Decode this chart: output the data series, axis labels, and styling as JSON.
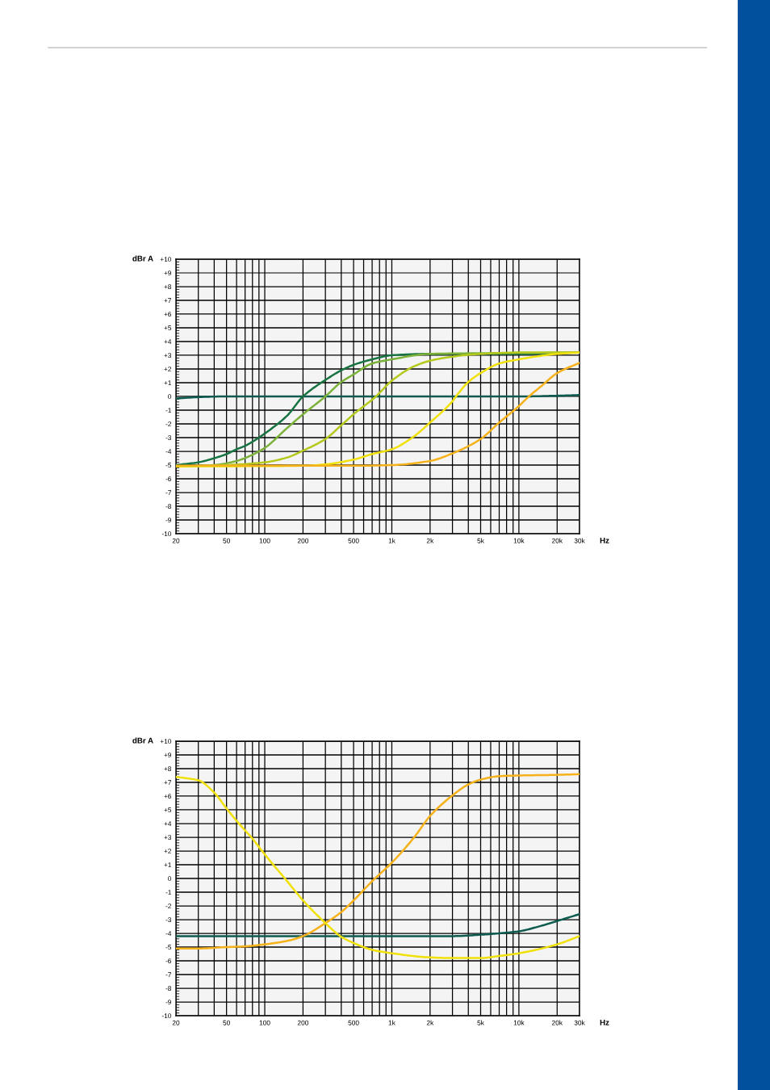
{
  "chart_data": [
    {
      "type": "line",
      "xlabel": "Hz",
      "ylabel": "dBr A",
      "log": "x",
      "grid": true,
      "xlim": [
        20,
        30000
      ],
      "ylim": [
        -10,
        10
      ],
      "xticks": [
        20,
        {
          "value": 30,
          "label": null
        },
        {
          "value": 40,
          "label": null
        },
        50,
        {
          "value": 60,
          "label": null
        },
        {
          "value": 70,
          "label": null
        },
        {
          "value": 80,
          "label": null
        },
        {
          "value": 90,
          "label": null
        },
        100,
        200,
        {
          "value": 300,
          "label": null
        },
        {
          "value": 400,
          "label": null
        },
        500,
        {
          "value": 600,
          "label": null
        },
        {
          "value": 700,
          "label": null
        },
        {
          "value": 800,
          "label": null
        },
        {
          "value": 900,
          "label": null
        },
        {
          "value": 1000,
          "label": "1k"
        },
        {
          "value": 2000,
          "label": "2k"
        },
        {
          "value": 3000,
          "label": null
        },
        {
          "value": 4000,
          "label": null
        },
        {
          "value": 5000,
          "label": "5k"
        },
        {
          "value": 6000,
          "label": null
        },
        {
          "value": 7000,
          "label": null
        },
        {
          "value": 8000,
          "label": null
        },
        {
          "value": 9000,
          "label": null
        },
        {
          "value": 10000,
          "label": "10k"
        },
        {
          "value": 20000,
          "label": "20k"
        },
        {
          "value": 30000,
          "label": "30k"
        }
      ],
      "yticks": [
        {
          "value": -10,
          "label": "-10"
        },
        {
          "value": -9,
          "label": "-9"
        },
        {
          "value": -8,
          "label": "-8"
        },
        {
          "value": -7,
          "label": "-7"
        },
        {
          "value": -6,
          "label": "-6"
        },
        {
          "value": -5,
          "label": "-5"
        },
        {
          "value": -4,
          "label": "-4"
        },
        {
          "value": -3,
          "label": "-3"
        },
        {
          "value": -2,
          "label": "-2"
        },
        {
          "value": -1,
          "label": "-1"
        },
        0,
        {
          "value": 1,
          "label": "+1"
        },
        {
          "value": 2,
          "label": "+2"
        },
        {
          "value": 3,
          "label": "+3"
        },
        {
          "value": 4,
          "label": "+4"
        },
        {
          "value": 5,
          "label": "+5"
        },
        {
          "value": 6,
          "label": "+6"
        },
        {
          "value": 7,
          "label": "+7"
        },
        {
          "value": 8,
          "label": "+8"
        },
        {
          "value": 9,
          "label": "+9"
        },
        {
          "value": 10,
          "label": "+10"
        }
      ],
      "series": [
        {
          "color": "#0d5a4e",
          "x": [
            20,
            30,
            50,
            100,
            1000,
            10000,
            20000,
            30000
          ],
          "values": [
            -0.15,
            -0.05,
            0,
            0,
            0,
            0,
            0.05,
            0.1
          ]
        },
        {
          "color": "#177442",
          "x": [
            20,
            30,
            40,
            50,
            60,
            70,
            80,
            100,
            150,
            200,
            300,
            400,
            500,
            700,
            1000,
            2000,
            5000,
            10000,
            30000
          ],
          "values": [
            -5.0,
            -4.8,
            -4.5,
            -4.2,
            -3.85,
            -3.6,
            -3.3,
            -2.7,
            -1.4,
            0.0,
            1.2,
            1.9,
            2.3,
            2.7,
            3.0,
            3.1,
            3.1,
            3.1,
            3.2
          ]
        },
        {
          "color": "#7cb23a",
          "x": [
            20,
            40,
            60,
            80,
            100,
            150,
            200,
            300,
            400,
            500,
            700,
            1000,
            2000,
            5000,
            30000
          ],
          "values": [
            -5.1,
            -5.0,
            -4.7,
            -4.25,
            -3.75,
            -2.3,
            -1.3,
            0.0,
            1.05,
            1.6,
            2.4,
            2.7,
            3.1,
            3.15,
            3.2
          ]
        },
        {
          "color": "#b5c91c",
          "x": [
            20,
            50,
            100,
            150,
            200,
            300,
            400,
            500,
            750,
            1000,
            1500,
            2000,
            3000,
            5000,
            10000,
            30000
          ],
          "values": [
            -5.1,
            -5.0,
            -4.8,
            -4.45,
            -3.95,
            -3.1,
            -2.1,
            -1.3,
            0.0,
            1.15,
            2.2,
            2.6,
            2.9,
            3.1,
            3.2,
            3.2
          ]
        },
        {
          "color": "#f1e10a",
          "x": [
            20,
            200,
            300,
            500,
            700,
            1000,
            1500,
            2000,
            3000,
            3200,
            4000,
            5000,
            7000,
            10000,
            20000,
            30000
          ],
          "values": [
            -5.1,
            -5.05,
            -4.95,
            -4.6,
            -4.2,
            -3.85,
            -2.9,
            -1.9,
            -0.35,
            0.0,
            1.05,
            1.7,
            2.4,
            2.7,
            3.1,
            3.2
          ]
        },
        {
          "color": "#f6b21a",
          "x": [
            20,
            500,
            1000,
            2000,
            3000,
            5000,
            7000,
            10000,
            12000,
            15000,
            20000,
            30000
          ],
          "values": [
            -5.05,
            -5.05,
            -5.0,
            -4.7,
            -4.15,
            -3.1,
            -1.9,
            -0.7,
            0.0,
            0.75,
            1.7,
            2.45
          ]
        }
      ]
    },
    {
      "type": "line",
      "xlabel": "Hz",
      "ylabel": "dBr A",
      "log": "x",
      "grid": true,
      "xlim": [
        20,
        30000
      ],
      "ylim": [
        -10,
        10
      ],
      "xticks": [
        20,
        {
          "value": 30,
          "label": null
        },
        {
          "value": 40,
          "label": null
        },
        50,
        {
          "value": 60,
          "label": null
        },
        {
          "value": 70,
          "label": null
        },
        {
          "value": 80,
          "label": null
        },
        {
          "value": 90,
          "label": null
        },
        100,
        200,
        {
          "value": 300,
          "label": null
        },
        {
          "value": 400,
          "label": null
        },
        500,
        {
          "value": 600,
          "label": null
        },
        {
          "value": 700,
          "label": null
        },
        {
          "value": 800,
          "label": null
        },
        {
          "value": 900,
          "label": null
        },
        {
          "value": 1000,
          "label": "1k"
        },
        {
          "value": 2000,
          "label": "2k"
        },
        {
          "value": 3000,
          "label": null
        },
        {
          "value": 4000,
          "label": null
        },
        {
          "value": 5000,
          "label": "5k"
        },
        {
          "value": 6000,
          "label": null
        },
        {
          "value": 7000,
          "label": null
        },
        {
          "value": 8000,
          "label": null
        },
        {
          "value": 9000,
          "label": null
        },
        {
          "value": 10000,
          "label": "10k"
        },
        {
          "value": 20000,
          "label": "20k"
        },
        {
          "value": 30000,
          "label": "30k"
        }
      ],
      "yticks": [
        {
          "value": -10,
          "label": "-10"
        },
        {
          "value": -9,
          "label": "-9"
        },
        {
          "value": -8,
          "label": "-8"
        },
        {
          "value": -7,
          "label": "-7"
        },
        {
          "value": -6,
          "label": "-6"
        },
        {
          "value": -5,
          "label": "-5"
        },
        {
          "value": -4,
          "label": "-4"
        },
        {
          "value": -3,
          "label": "-3"
        },
        {
          "value": -2,
          "label": "-2"
        },
        {
          "value": -1,
          "label": "-1"
        },
        0,
        {
          "value": 1,
          "label": "+1"
        },
        {
          "value": 2,
          "label": "+2"
        },
        {
          "value": 3,
          "label": "+3"
        },
        {
          "value": 4,
          "label": "+4"
        },
        {
          "value": 5,
          "label": "+5"
        },
        {
          "value": 6,
          "label": "+6"
        },
        {
          "value": 7,
          "label": "+7"
        },
        {
          "value": 8,
          "label": "+8"
        },
        {
          "value": 9,
          "label": "+9"
        },
        {
          "value": 10,
          "label": "+10"
        }
      ],
      "series": [
        {
          "color": "#0d5a4e",
          "x": [
            20,
            100,
            1000,
            3000,
            5000,
            7000,
            10000,
            15000,
            20000,
            30000
          ],
          "values": [
            -4.2,
            -4.2,
            -4.2,
            -4.2,
            -4.1,
            -4.0,
            -3.85,
            -3.45,
            -3.1,
            -2.6
          ]
        },
        {
          "color": "#f6b21a",
          "x": [
            20,
            30,
            50,
            70,
            100,
            150,
            200,
            300,
            400,
            500,
            700,
            1000,
            1500,
            2000,
            3000,
            4000,
            5000,
            7000,
            10000,
            20000,
            30000
          ],
          "values": [
            -5.1,
            -5.1,
            -5.0,
            -4.95,
            -4.8,
            -4.55,
            -4.2,
            -3.25,
            -2.45,
            -1.6,
            -0.2,
            1.15,
            3.0,
            4.55,
            6.05,
            6.85,
            7.2,
            7.45,
            7.5,
            7.55,
            7.6
          ]
        },
        {
          "color": "#f1e10a",
          "x": [
            20,
            30,
            40,
            50,
            60,
            70,
            80,
            100,
            150,
            200,
            300,
            400,
            500,
            700,
            1000,
            2000,
            3000,
            5000,
            7000,
            10000,
            20000,
            30000
          ],
          "values": [
            7.4,
            7.15,
            6.25,
            5.1,
            4.2,
            3.5,
            2.9,
            1.75,
            -0.2,
            -1.6,
            -3.25,
            -4.25,
            -4.7,
            -5.2,
            -5.45,
            -5.75,
            -5.8,
            -5.8,
            -5.65,
            -5.45,
            -4.8,
            -4.2
          ]
        }
      ]
    }
  ]
}
